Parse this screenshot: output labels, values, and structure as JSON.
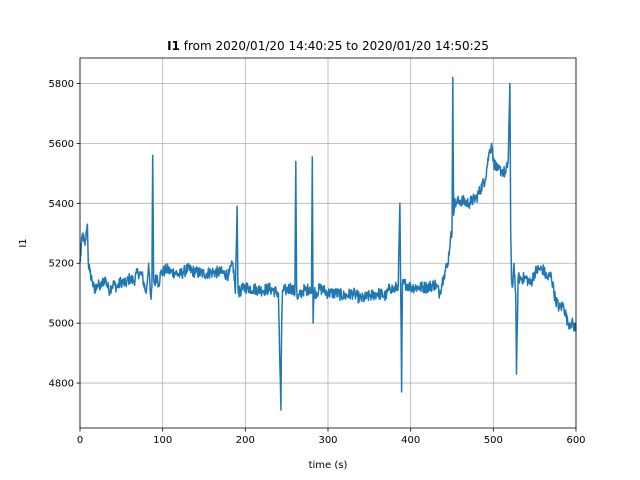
{
  "chart_data": {
    "type": "line",
    "title_bold": "I1",
    "title_rest": " from 2020/01/20 14:40:25 to 2020/01/20 14:50:25",
    "xlabel": "time (s)",
    "ylabel": "I1",
    "xlim": [
      0,
      600
    ],
    "ylim": [
      4650,
      5885
    ],
    "xticks": [
      0,
      100,
      200,
      300,
      400,
      500,
      600
    ],
    "yticks": [
      4800,
      5000,
      5200,
      5400,
      5600,
      5800
    ],
    "grid": true,
    "line_color": "#1f77b4",
    "series": [
      {
        "x": [
          0,
          3,
          6,
          9,
          10,
          12,
          15,
          18,
          20,
          25,
          30,
          35,
          40,
          45,
          50,
          55,
          60,
          65,
          70,
          75,
          80,
          83,
          85,
          86,
          87,
          88,
          89,
          90,
          93,
          95,
          98,
          100,
          105,
          110,
          115,
          120,
          125,
          130,
          140,
          150,
          160,
          170,
          180,
          185,
          188,
          190,
          191,
          192,
          195,
          200,
          210,
          220,
          230,
          240,
          243,
          244,
          245,
          250,
          255,
          260,
          261,
          262,
          263,
          270,
          275,
          278,
          280,
          281,
          282,
          283,
          285,
          290,
          295,
          300,
          305,
          310,
          320,
          330,
          340,
          350,
          360,
          370,
          375,
          380,
          385,
          387,
          388,
          389,
          390,
          395,
          400,
          410,
          420,
          430,
          435,
          440,
          445,
          448,
          450,
          451,
          452,
          453,
          455,
          460,
          470,
          480,
          490,
          495,
          498,
          500,
          505,
          510,
          515,
          518,
          520,
          521,
          522,
          523,
          525,
          527,
          528,
          530,
          540,
          545,
          550,
          555,
          560,
          565,
          570,
          575,
          580,
          585,
          590,
          595,
          600
        ],
        "y": [
          5200,
          5300,
          5260,
          5330,
          5200,
          5170,
          5140,
          5100,
          5130,
          5120,
          5150,
          5110,
          5130,
          5120,
          5140,
          5130,
          5150,
          5140,
          5170,
          5160,
          5100,
          5200,
          5100,
          5080,
          5120,
          5560,
          5150,
          5130,
          5160,
          5130,
          5170,
          5170,
          5180,
          5170,
          5170,
          5160,
          5170,
          5180,
          5170,
          5165,
          5170,
          5170,
          5160,
          5200,
          5100,
          5390,
          5130,
          5100,
          5110,
          5120,
          5115,
          5110,
          5115,
          5100,
          4710,
          5000,
          5110,
          5110,
          5120,
          5100,
          5540,
          5120,
          5080,
          5110,
          5110,
          5120,
          5100,
          5555,
          5000,
          5110,
          5100,
          5115,
          5110,
          5100,
          5100,
          5100,
          5090,
          5100,
          5080,
          5090,
          5100,
          5090,
          5120,
          5110,
          5130,
          5400,
          5110,
          4770,
          5130,
          5130,
          5120,
          5120,
          5120,
          5130,
          5100,
          5160,
          5200,
          5280,
          5300,
          5820,
          5360,
          5400,
          5400,
          5410,
          5400,
          5420,
          5480,
          5570,
          5600,
          5540,
          5510,
          5510,
          5500,
          5540,
          5800,
          5300,
          5150,
          5120,
          5200,
          5100,
          4830,
          5150,
          5150,
          5130,
          5170,
          5180,
          5180,
          5150,
          5160,
          5080,
          5050,
          5060,
          5000,
          5000,
          4980
        ]
      }
    ]
  }
}
